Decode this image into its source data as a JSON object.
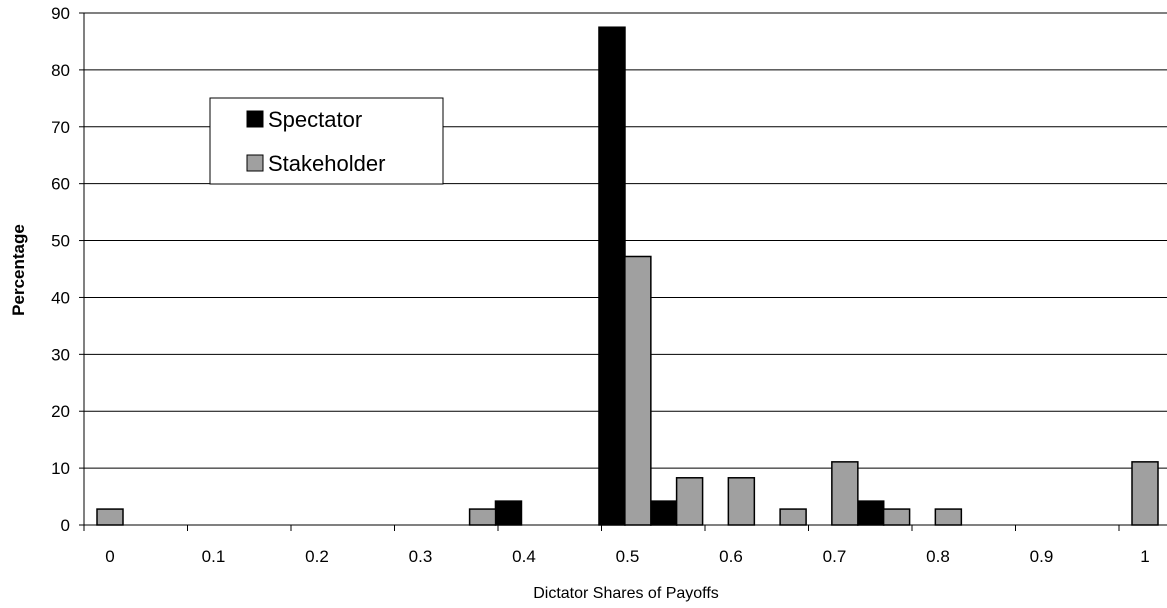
{
  "chart_data": {
    "type": "bar",
    "xlabel": "Dictator Shares of Payoffs",
    "ylabel": "Percentage",
    "ylim": [
      0,
      90
    ],
    "y_ticks": [
      0,
      10,
      20,
      30,
      40,
      50,
      60,
      70,
      80,
      90
    ],
    "x_ticks": [
      "0",
      "0.1",
      "0.2",
      "0.3",
      "0.4",
      "0.5",
      "0.6",
      "0.7",
      "0.8",
      "0.9",
      "1"
    ],
    "grid": "horizontal",
    "legend_position": "top-left",
    "series": [
      {
        "name": "Spectator",
        "color": "#000000",
        "points": [
          {
            "x": 0.385,
            "y": 4.2
          },
          {
            "x": 0.485,
            "y": 87.5
          },
          {
            "x": 0.535,
            "y": 4.2
          },
          {
            "x": 0.735,
            "y": 4.2
          }
        ]
      },
      {
        "name": "Stakeholder",
        "color": "#a0a0a0",
        "points": [
          {
            "x": 0.0,
            "y": 2.8
          },
          {
            "x": 0.36,
            "y": 2.8
          },
          {
            "x": 0.51,
            "y": 47.2
          },
          {
            "x": 0.56,
            "y": 8.3
          },
          {
            "x": 0.61,
            "y": 8.3
          },
          {
            "x": 0.66,
            "y": 2.8
          },
          {
            "x": 0.71,
            "y": 11.1
          },
          {
            "x": 0.76,
            "y": 2.8
          },
          {
            "x": 0.81,
            "y": 2.8
          },
          {
            "x": 1.0,
            "y": 11.1
          }
        ]
      }
    ]
  }
}
